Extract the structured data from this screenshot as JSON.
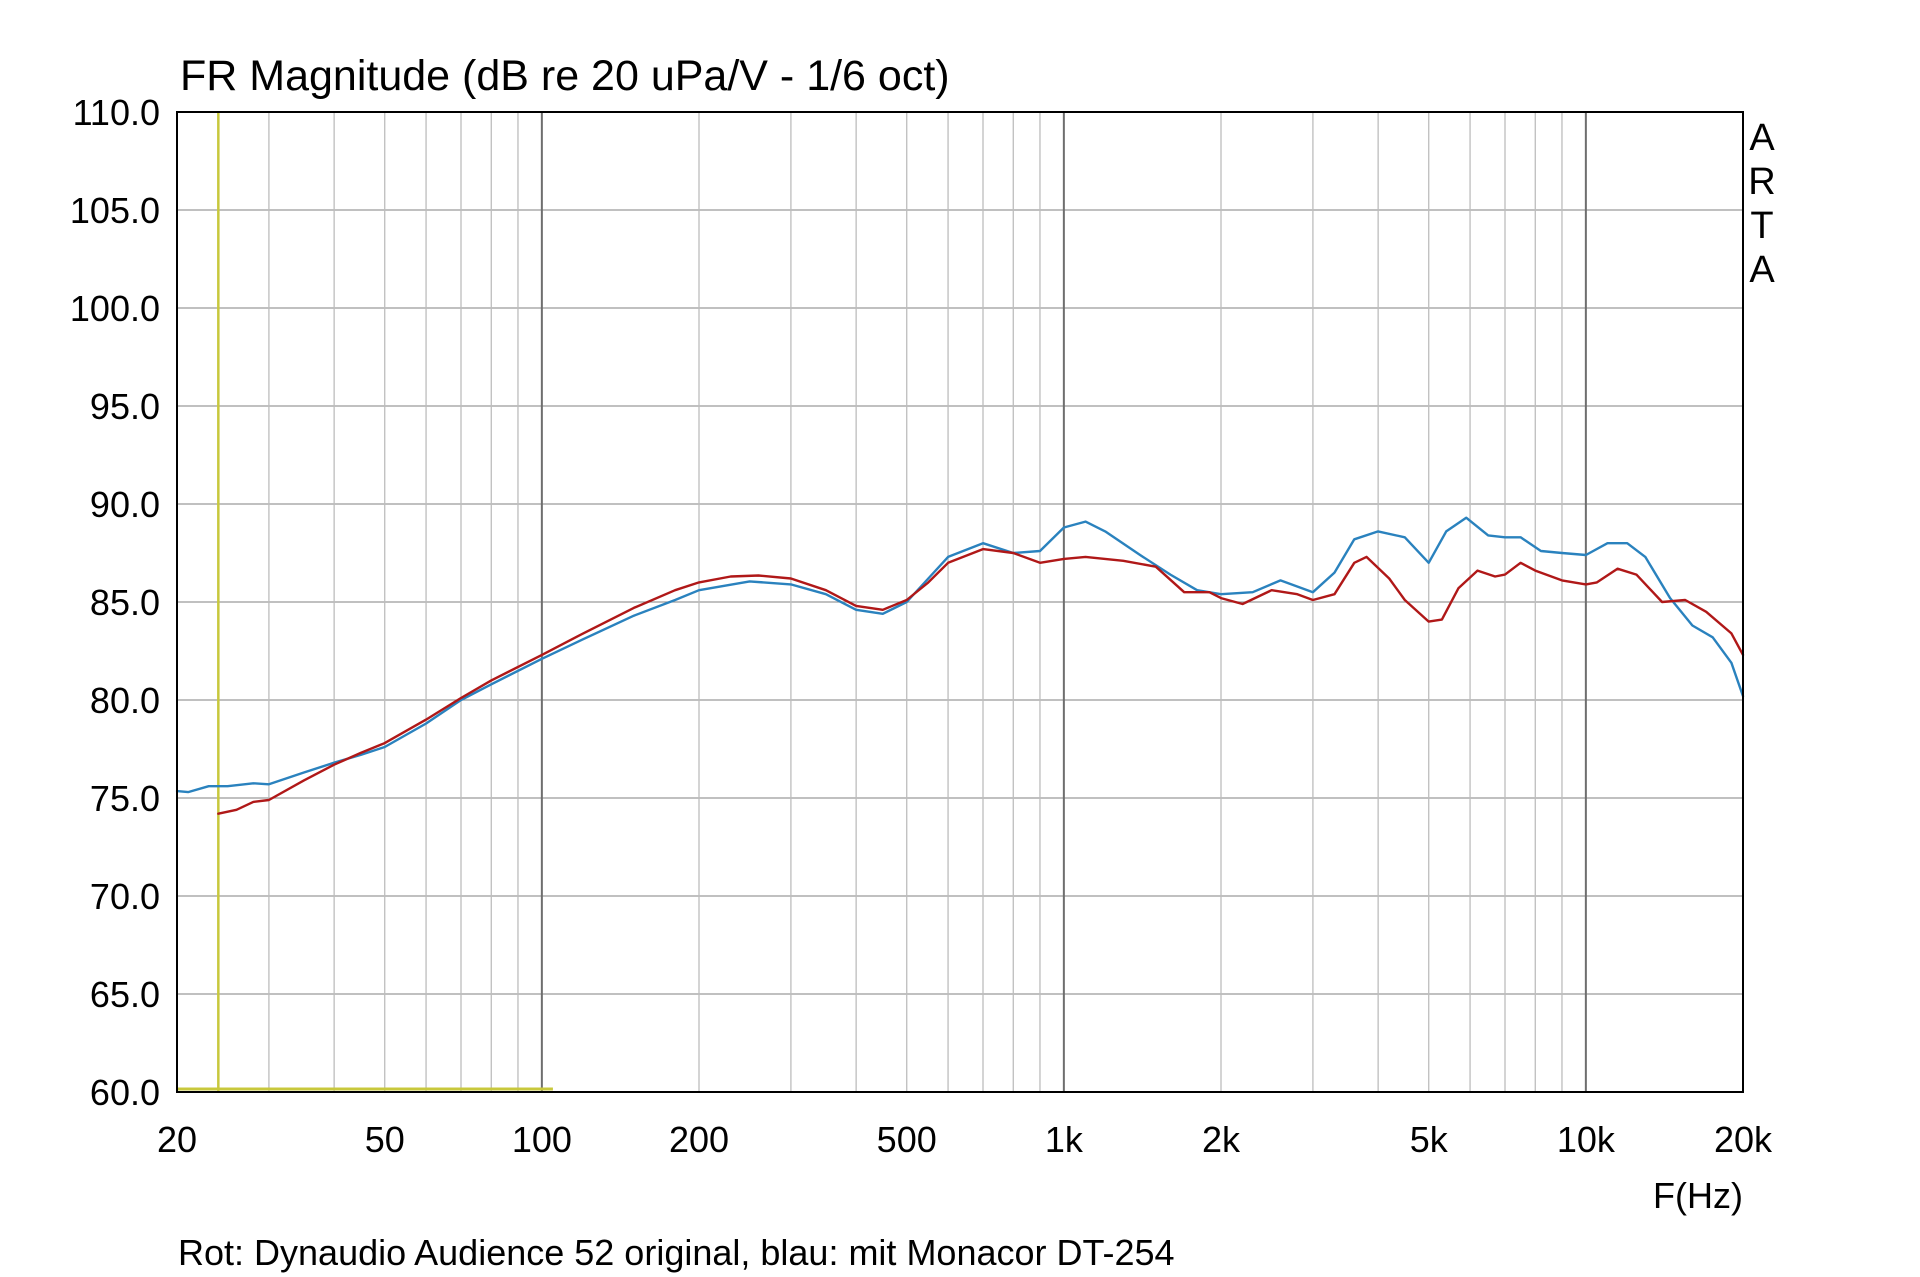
{
  "chart_data": {
    "type": "line",
    "title": "FR Magnitude (dB re 20 uPa/V - 1/6 oct)",
    "xlabel": "F(Hz)",
    "ylabel": "",
    "x_scale": "log",
    "xlim": [
      20,
      20000
    ],
    "ylim": [
      60,
      110
    ],
    "grid": true,
    "brand": "ARTA",
    "caption": "Rot: Dynaudio Audience 52 original, blau: mit Monacor DT-254",
    "y_ticks": [
      "60.0",
      "65.0",
      "70.0",
      "75.0",
      "80.0",
      "85.0",
      "90.0",
      "95.0",
      "100.0",
      "105.0",
      "110.0"
    ],
    "x_tick_labels": [
      {
        "value": 20,
        "label": "20"
      },
      {
        "value": 50,
        "label": "50"
      },
      {
        "value": 100,
        "label": "100"
      },
      {
        "value": 200,
        "label": "200"
      },
      {
        "value": 500,
        "label": "500"
      },
      {
        "value": 1000,
        "label": "1k"
      },
      {
        "value": 2000,
        "label": "2k"
      },
      {
        "value": 5000,
        "label": "5k"
      },
      {
        "value": 10000,
        "label": "10k"
      },
      {
        "value": 20000,
        "label": "20k"
      }
    ],
    "markers": {
      "vertical_x": 24,
      "horizontal_y": 60,
      "horizontal_x_range": [
        20,
        105
      ],
      "color": "#c8c83c"
    },
    "series": [
      {
        "color": "#b01818",
        "points": [
          [
            24,
            74.2
          ],
          [
            26,
            74.4
          ],
          [
            28,
            74.8
          ],
          [
            30,
            74.9
          ],
          [
            35,
            75.9
          ],
          [
            40,
            76.7
          ],
          [
            45,
            77.3
          ],
          [
            50,
            77.8
          ],
          [
            60,
            79.0
          ],
          [
            70,
            80.1
          ],
          [
            80,
            81.0
          ],
          [
            100,
            82.3
          ],
          [
            120,
            83.4
          ],
          [
            150,
            84.7
          ],
          [
            180,
            85.6
          ],
          [
            200,
            86.0
          ],
          [
            230,
            86.3
          ],
          [
            260,
            86.35
          ],
          [
            300,
            86.2
          ],
          [
            350,
            85.6
          ],
          [
            400,
            84.8
          ],
          [
            450,
            84.6
          ],
          [
            500,
            85.1
          ],
          [
            550,
            86.0
          ],
          [
            600,
            87.0
          ],
          [
            700,
            87.7
          ],
          [
            800,
            87.5
          ],
          [
            900,
            87.0
          ],
          [
            1000,
            87.2
          ],
          [
            1100,
            87.3
          ],
          [
            1300,
            87.1
          ],
          [
            1500,
            86.8
          ],
          [
            1700,
            85.5
          ],
          [
            1900,
            85.5
          ],
          [
            2000,
            85.2
          ],
          [
            2200,
            84.9
          ],
          [
            2500,
            85.6
          ],
          [
            2800,
            85.4
          ],
          [
            3000,
            85.1
          ],
          [
            3300,
            85.4
          ],
          [
            3600,
            87.0
          ],
          [
            3800,
            87.3
          ],
          [
            4200,
            86.2
          ],
          [
            4500,
            85.1
          ],
          [
            5000,
            84.0
          ],
          [
            5300,
            84.1
          ],
          [
            5700,
            85.7
          ],
          [
            6200,
            86.6
          ],
          [
            6700,
            86.3
          ],
          [
            7000,
            86.4
          ],
          [
            7500,
            87.0
          ],
          [
            8000,
            86.6
          ],
          [
            9000,
            86.1
          ],
          [
            10000,
            85.9
          ],
          [
            10500,
            86.0
          ],
          [
            11500,
            86.7
          ],
          [
            12500,
            86.4
          ],
          [
            14000,
            85.0
          ],
          [
            15500,
            85.1
          ],
          [
            17000,
            84.5
          ],
          [
            19000,
            83.4
          ],
          [
            20000,
            82.3
          ]
        ]
      },
      {
        "color": "#2a82be",
        "points": [
          [
            20,
            75.35
          ],
          [
            21,
            75.3
          ],
          [
            23,
            75.6
          ],
          [
            25,
            75.6
          ],
          [
            28,
            75.75
          ],
          [
            30,
            75.7
          ],
          [
            35,
            76.3
          ],
          [
            40,
            76.8
          ],
          [
            45,
            77.2
          ],
          [
            50,
            77.6
          ],
          [
            60,
            78.8
          ],
          [
            70,
            80.0
          ],
          [
            80,
            80.8
          ],
          [
            100,
            82.1
          ],
          [
            120,
            83.1
          ],
          [
            150,
            84.3
          ],
          [
            180,
            85.1
          ],
          [
            200,
            85.6
          ],
          [
            250,
            86.05
          ],
          [
            300,
            85.9
          ],
          [
            350,
            85.4
          ],
          [
            400,
            84.6
          ],
          [
            450,
            84.4
          ],
          [
            500,
            85.0
          ],
          [
            550,
            86.2
          ],
          [
            600,
            87.3
          ],
          [
            700,
            88.0
          ],
          [
            800,
            87.5
          ],
          [
            900,
            87.6
          ],
          [
            1000,
            88.8
          ],
          [
            1100,
            89.1
          ],
          [
            1200,
            88.6
          ],
          [
            1400,
            87.4
          ],
          [
            1600,
            86.4
          ],
          [
            1800,
            85.6
          ],
          [
            2000,
            85.4
          ],
          [
            2300,
            85.5
          ],
          [
            2600,
            86.1
          ],
          [
            3000,
            85.5
          ],
          [
            3300,
            86.5
          ],
          [
            3600,
            88.2
          ],
          [
            4000,
            88.6
          ],
          [
            4500,
            88.3
          ],
          [
            5000,
            87.0
          ],
          [
            5400,
            88.6
          ],
          [
            5900,
            89.3
          ],
          [
            6500,
            88.4
          ],
          [
            7000,
            88.3
          ],
          [
            7500,
            88.3
          ],
          [
            8200,
            87.6
          ],
          [
            9000,
            87.5
          ],
          [
            10000,
            87.4
          ],
          [
            11000,
            88.0
          ],
          [
            12000,
            88.0
          ],
          [
            13000,
            87.3
          ],
          [
            14500,
            85.2
          ],
          [
            16000,
            83.8
          ],
          [
            17500,
            83.2
          ],
          [
            19000,
            81.9
          ],
          [
            20000,
            80.2
          ]
        ]
      }
    ]
  }
}
